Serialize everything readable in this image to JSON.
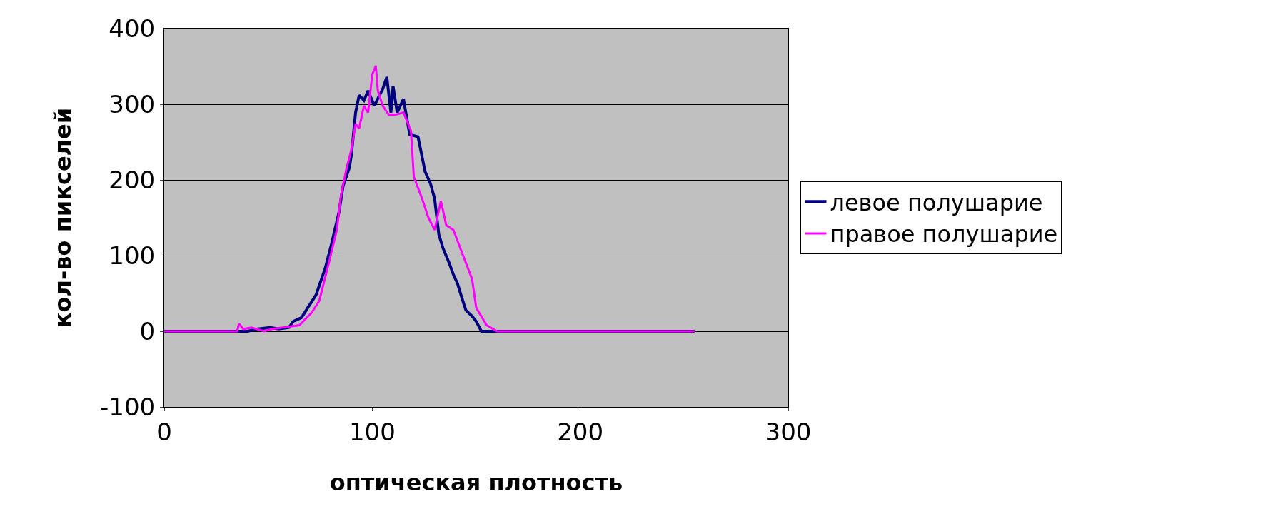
{
  "chart_data": {
    "type": "line",
    "xlabel": "оптическая плотность",
    "ylabel": "кол-во пикселей",
    "xlim": [
      0,
      300
    ],
    "xticks": [
      0,
      100,
      200,
      300
    ],
    "ylim": [
      -100,
      400
    ],
    "yticks": [
      -100,
      0,
      100,
      200,
      300,
      400
    ],
    "grid": "y",
    "legend": "right",
    "marker": "none",
    "line_style": "solid",
    "series": [
      {
        "name": "левое полушарие",
        "color": "#000080",
        "x": [
          0,
          40,
          45,
          51,
          55,
          60,
          62,
          66,
          69,
          73,
          77.5,
          80.5,
          84,
          86,
          89,
          90,
          92,
          93.7,
          96,
          98,
          101,
          103,
          105,
          107,
          109,
          110,
          112,
          115,
          118,
          122,
          125.4,
          128,
          130,
          132,
          134,
          137,
          139,
          141,
          143,
          145,
          148,
          150,
          152.5,
          160,
          200,
          255
        ],
        "values": [
          0,
          0,
          3,
          5,
          3,
          5,
          13,
          18,
          31,
          48,
          84,
          116,
          157,
          192,
          216,
          233,
          289,
          312,
          305,
          318,
          298,
          309,
          320,
          336,
          289,
          324,
          289,
          307,
          260,
          257,
          211,
          195,
          175,
          128,
          110,
          90,
          75,
          63,
          45,
          28,
          20,
          13,
          0,
          0,
          0,
          0
        ]
      },
      {
        "name": "правое полушарие",
        "color": "#ff00ff",
        "x": [
          0,
          35,
          36,
          38,
          42,
          48,
          52,
          57,
          65,
          71,
          74.5,
          78.6,
          83,
          85,
          87.7,
          89.9,
          92,
          93.7,
          96,
          98,
          100,
          101.7,
          102.7,
          105,
          108,
          111,
          115,
          118.6,
          120,
          124,
          127,
          130,
          133,
          135.6,
          139,
          143,
          148,
          150,
          155,
          160,
          200,
          255
        ],
        "values": [
          0,
          0,
          10,
          3,
          5,
          0,
          3,
          5,
          8,
          25,
          40,
          84,
          134,
          180,
          216,
          239,
          274,
          268,
          298,
          289,
          339,
          351,
          318,
          298,
          286,
          286,
          289,
          265,
          204,
          175,
          150,
          134,
          172,
          140,
          134,
          105,
          69,
          31,
          8,
          0,
          0,
          0
        ]
      }
    ]
  }
}
